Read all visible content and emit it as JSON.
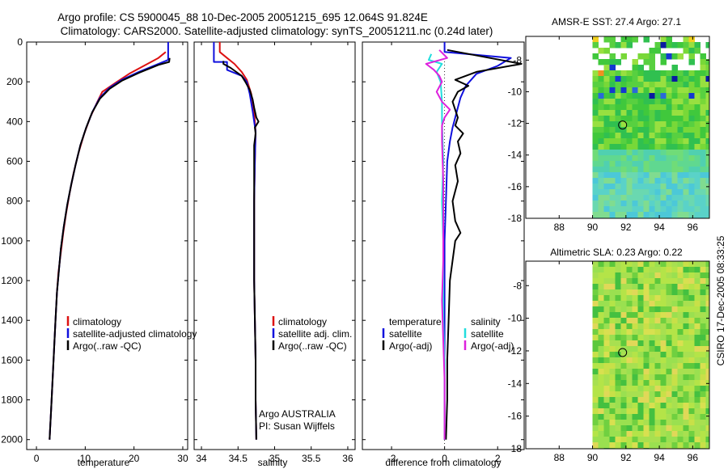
{
  "header": {
    "title_line1": "Argo profile: CS 5900045_88 10-Dec-2005 20051215_695 12.064S 91.824E",
    "title_line2": "Climatology: CARS2000. Satellite-adjusted climatology: synTS_20051211.nc (0.24d later)"
  },
  "side_text": "CSIRO 17-Dec-2005 08:33:25",
  "colors": {
    "climatology": "#dd1111",
    "satellite": "#1010dd",
    "argo": "#000000",
    "sat_salinity": "#22dddd",
    "argo_salinity": "#dd22dd"
  },
  "chart_data": [
    {
      "type": "line",
      "id": "temperature",
      "xlabel": "temperature",
      "ylabel": "",
      "xlim": [
        -2,
        31
      ],
      "ylim": [
        2050,
        0
      ],
      "xticks": [
        0,
        10,
        20,
        30
      ],
      "yticks": [
        0,
        200,
        400,
        600,
        800,
        1000,
        1200,
        1400,
        1600,
        1800,
        2000
      ],
      "legend": [
        "climatology",
        "satellite-adjusted climatology",
        "Argo(..raw -QC)"
      ],
      "legend_placement": "lower-middle",
      "series": [
        {
          "name": "climatology",
          "color": "#dd1111",
          "points": [
            [
              26.5,
              50
            ],
            [
              25,
              80
            ],
            [
              22,
              120
            ],
            [
              19,
              160
            ],
            [
              16.5,
              200
            ],
            [
              13.5,
              250
            ],
            [
              12.5,
              300
            ],
            [
              11,
              380
            ],
            [
              9.8,
              460
            ],
            [
              8.6,
              560
            ],
            [
              7.6,
              660
            ],
            [
              6.8,
              760
            ],
            [
              6.1,
              860
            ],
            [
              5.5,
              960
            ],
            [
              5,
              1060
            ],
            [
              4.5,
              1160
            ],
            [
              4.2,
              1260
            ],
            [
              3.9,
              1400
            ],
            [
              3.6,
              1550
            ],
            [
              3.3,
              1700
            ],
            [
              3,
              1850
            ],
            [
              2.8,
              1950
            ],
            [
              2.7,
              2000
            ]
          ]
        },
        {
          "name": "satellite-adjusted climatology",
          "color": "#1010dd",
          "points": [
            [
              27,
              0
            ],
            [
              27,
              90
            ],
            [
              25,
              110
            ],
            [
              21,
              150
            ],
            [
              17.5,
              190
            ],
            [
              15,
              230
            ],
            [
              13,
              280
            ],
            [
              11.5,
              350
            ],
            [
              10.2,
              430
            ],
            [
              9,
              520
            ],
            [
              8,
              620
            ],
            [
              7.1,
              720
            ],
            [
              6.3,
              820
            ],
            [
              5.6,
              930
            ],
            [
              5,
              1040
            ],
            [
              4.6,
              1150
            ],
            [
              4.2,
              1260
            ],
            [
              3.9,
              1400
            ],
            [
              3.6,
              1550
            ],
            [
              3.3,
              1700
            ],
            [
              3,
              1850
            ],
            [
              2.8,
              1950
            ],
            [
              2.7,
              2000
            ]
          ]
        },
        {
          "name": "Argo(..raw -QC)",
          "color": "#000000",
          "points": [
            [
              27.3,
              80
            ],
            [
              27.2,
              100
            ],
            [
              25,
              115
            ],
            [
              21,
              155
            ],
            [
              17.5,
              195
            ],
            [
              15,
              235
            ],
            [
              13,
              285
            ],
            [
              11.4,
              355
            ],
            [
              10.2,
              430
            ],
            [
              9,
              520
            ],
            [
              8,
              620
            ],
            [
              7.1,
              720
            ],
            [
              6.3,
              820
            ],
            [
              5.6,
              930
            ],
            [
              5,
              1040
            ],
            [
              4.6,
              1150
            ],
            [
              4.2,
              1260
            ],
            [
              3.9,
              1400
            ],
            [
              3.6,
              1550
            ],
            [
              3.3,
              1700
            ],
            [
              3,
              1850
            ],
            [
              2.8,
              1950
            ],
            [
              2.7,
              2000
            ]
          ]
        }
      ]
    },
    {
      "type": "line",
      "id": "salinity",
      "xlabel": "salinity",
      "xlim": [
        33.9,
        36.1
      ],
      "ylim": [
        2050,
        0
      ],
      "xticks": [
        34,
        34.5,
        35,
        35.5,
        36
      ],
      "legend": [
        "climatology",
        "satellite adj. clim.",
        "Argo(..raw -QC)"
      ],
      "legend_placement": "lower-right",
      "annotation_line1": "Argo AUSTRALIA",
      "annotation_line2": "PI: Susan Wijffels",
      "series": [
        {
          "name": "climatology",
          "color": "#dd1111",
          "points": [
            [
              34.25,
              0
            ],
            [
              34.25,
              50
            ],
            [
              34.35,
              80
            ],
            [
              34.45,
              110
            ],
            [
              34.55,
              150
            ],
            [
              34.62,
              190
            ],
            [
              34.68,
              260
            ],
            [
              34.72,
              350
            ],
            [
              34.74,
              450
            ],
            [
              34.73,
              600
            ],
            [
              34.72,
              800
            ],
            [
              34.72,
              1000
            ],
            [
              34.72,
              1200
            ],
            [
              34.73,
              1400
            ],
            [
              34.74,
              1600
            ],
            [
              34.74,
              1800
            ],
            [
              34.75,
              2000
            ]
          ]
        },
        {
          "name": "satellite adj. clim.",
          "color": "#1010dd",
          "points": [
            [
              34.17,
              0
            ],
            [
              34.17,
              100
            ],
            [
              34.35,
              100
            ],
            [
              34.35,
              140
            ],
            [
              34.55,
              170
            ],
            [
              34.62,
              200
            ],
            [
              34.66,
              260
            ],
            [
              34.7,
              350
            ],
            [
              34.74,
              450
            ],
            [
              34.73,
              600
            ],
            [
              34.72,
              800
            ],
            [
              34.72,
              1000
            ],
            [
              34.72,
              1200
            ],
            [
              34.73,
              1400
            ],
            [
              34.74,
              1600
            ],
            [
              34.74,
              1800
            ],
            [
              34.75,
              2000
            ]
          ]
        },
        {
          "name": "Argo(..raw -QC)",
          "color": "#000000",
          "points": [
            [
              34.3,
              95
            ],
            [
              34.3,
              110
            ],
            [
              34.4,
              130
            ],
            [
              34.55,
              170
            ],
            [
              34.6,
              200
            ],
            [
              34.66,
              240
            ],
            [
              34.7,
              290
            ],
            [
              34.72,
              330
            ],
            [
              34.75,
              380
            ],
            [
              34.78,
              400
            ],
            [
              34.73,
              430
            ],
            [
              34.74,
              460
            ],
            [
              34.72,
              520
            ],
            [
              34.72,
              650
            ],
            [
              34.72,
              800
            ],
            [
              34.72,
              1000
            ],
            [
              34.72,
              1200
            ],
            [
              34.73,
              1400
            ],
            [
              34.74,
              1600
            ],
            [
              34.74,
              1800
            ],
            [
              34.75,
              2000
            ]
          ]
        }
      ]
    },
    {
      "type": "line",
      "id": "difference",
      "xlabel": "difference from climatology",
      "xlim": [
        -3.1,
        3
      ],
      "ylim": [
        2050,
        0
      ],
      "xticks": [
        -2,
        0,
        2
      ],
      "legend_title_left": "temperature",
      "legend_title_right": "salinity",
      "legend": [
        "satellite",
        "Argo(-adj)",
        "satellite",
        "Argo(-adj)"
      ],
      "legend_placement": "lower-middle",
      "series": [
        {
          "name": "temperature satellite",
          "color": "#1010dd",
          "points": [
            [
              0,
              0
            ],
            [
              0,
              50
            ],
            [
              2.5,
              80
            ],
            [
              2,
              120
            ],
            [
              1.2,
              160
            ],
            [
              0.8,
              220
            ],
            [
              0.6,
              280
            ],
            [
              0.5,
              330
            ],
            [
              0.4,
              380
            ],
            [
              0.3,
              430
            ],
            [
              0.2,
              500
            ],
            [
              0.1,
              600
            ],
            [
              0.05,
              800
            ],
            [
              0,
              1000
            ],
            [
              0,
              1400
            ],
            [
              0,
              1800
            ],
            [
              0,
              2000
            ]
          ]
        },
        {
          "name": "temperature Argo(-adj)",
          "color": "#000000",
          "points": [
            [
              0.1,
              40
            ],
            [
              1.3,
              70
            ],
            [
              2.9,
              110
            ],
            [
              1.2,
              150
            ],
            [
              0.4,
              190
            ],
            [
              0.9,
              220
            ],
            [
              0.5,
              250
            ],
            [
              0.3,
              300
            ],
            [
              0.5,
              380
            ],
            [
              0.4,
              420
            ],
            [
              0.7,
              460
            ],
            [
              0.5,
              500
            ],
            [
              0.6,
              560
            ],
            [
              0.4,
              620
            ],
            [
              0.5,
              700
            ],
            [
              0.3,
              800
            ],
            [
              0.4,
              900
            ],
            [
              0.6,
              960
            ],
            [
              0.4,
              1000
            ],
            [
              0.3,
              1100
            ],
            [
              0.2,
              1200
            ],
            [
              0.15,
              1400
            ],
            [
              0.1,
              1600
            ],
            [
              0.1,
              1800
            ],
            [
              0.05,
              2000
            ]
          ]
        },
        {
          "name": "salinity satellite",
          "color": "#22dddd",
          "points": [
            [
              -0.5,
              60
            ],
            [
              -0.6,
              90
            ],
            [
              -0.1,
              110
            ],
            [
              -0.3,
              150
            ],
            [
              -0.15,
              200
            ],
            [
              -0.1,
              300
            ],
            [
              -0.1,
              400
            ],
            [
              -0.05,
              600
            ],
            [
              -0.1,
              800
            ],
            [
              -0.05,
              1000
            ],
            [
              -0.05,
              1200
            ],
            [
              -0.05,
              1400
            ],
            [
              0,
              1600
            ],
            [
              0,
              1800
            ],
            [
              0,
              2000
            ]
          ]
        },
        {
          "name": "salinity Argo(-adj)",
          "color": "#dd22dd",
          "points": [
            [
              -0.2,
              40
            ],
            [
              0.1,
              80
            ],
            [
              -0.7,
              110
            ],
            [
              -0.4,
              140
            ],
            [
              -0.2,
              170
            ],
            [
              -0.1,
              200
            ],
            [
              -0.3,
              250
            ],
            [
              -0.1,
              300
            ],
            [
              0.2,
              340
            ],
            [
              0,
              380
            ],
            [
              -0.1,
              420
            ],
            [
              -0.1,
              500
            ],
            [
              -0.05,
              700
            ],
            [
              -0.05,
              900
            ],
            [
              -0.05,
              1100
            ],
            [
              -0.1,
              1300
            ],
            [
              -0.05,
              1500
            ],
            [
              0,
              1700
            ],
            [
              0,
              1900
            ],
            [
              0,
              2000
            ]
          ]
        }
      ]
    },
    {
      "type": "heatmap",
      "id": "sst_map",
      "title": "AMSR-E SST: 27.4 Argo: 27.1",
      "xlim": [
        86,
        97
      ],
      "ylim": [
        -18,
        -6.5
      ],
      "xticks": [
        88,
        90,
        92,
        94,
        96
      ],
      "yticks": [
        -8,
        -10,
        -12,
        -14,
        -16,
        -18
      ],
      "marker": [
        91.8,
        -12.1
      ]
    },
    {
      "type": "heatmap",
      "id": "sla_map",
      "title": "Altimetric SLA: 0.23 Argo: 0.22",
      "xlim": [
        86,
        97
      ],
      "ylim": [
        -18,
        -6.5
      ],
      "xticks": [
        88,
        90,
        92,
        94,
        96
      ],
      "yticks": [
        -8,
        -10,
        -12,
        -14,
        -16,
        -18
      ],
      "marker": [
        91.8,
        -12.1
      ]
    }
  ]
}
